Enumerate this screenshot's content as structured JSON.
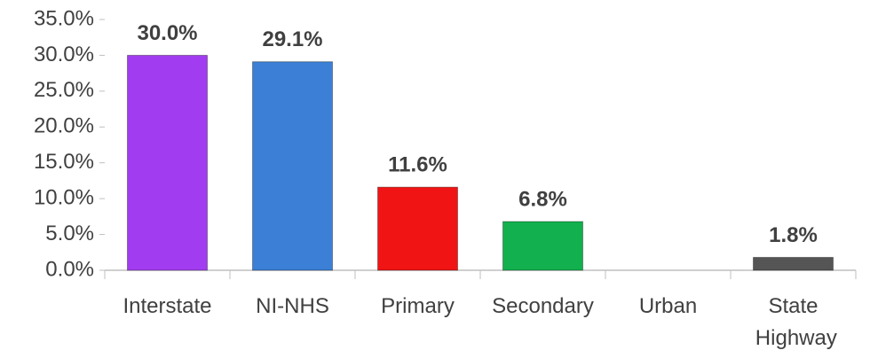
{
  "chart_data": {
    "type": "bar",
    "categories": [
      "Interstate",
      "NI-NHS",
      "Primary",
      "Secondary",
      "Urban",
      "State Highway"
    ],
    "values": [
      30.0,
      29.1,
      11.6,
      6.8,
      null,
      1.8
    ],
    "value_labels": [
      "30.0%",
      "29.1%",
      "11.6%",
      "6.8%",
      null,
      "1.8%"
    ],
    "colors": [
      "#a23cf0",
      "#3b7fd6",
      "#f01414",
      "#12b04e",
      "#888888",
      "#555555"
    ],
    "ylim": [
      0,
      35
    ],
    "yticks": [
      {
        "value": 0,
        "label": "0.0%"
      },
      {
        "value": 5,
        "label": "5.0%"
      },
      {
        "value": 10,
        "label": "10.0%"
      },
      {
        "value": 15,
        "label": "15.0%"
      },
      {
        "value": 20,
        "label": "20.0%"
      },
      {
        "value": 25,
        "label": "25.0%"
      },
      {
        "value": 30,
        "label": "30.0%"
      },
      {
        "value": 35,
        "label": "35.0%"
      }
    ],
    "grid": false
  }
}
